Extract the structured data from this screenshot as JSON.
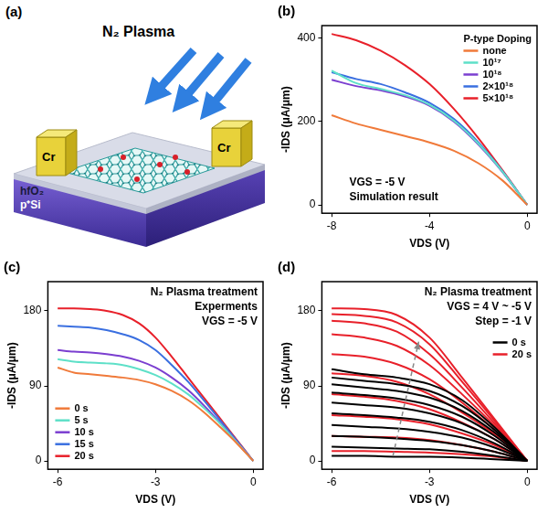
{
  "diagram": {
    "label": "(a)",
    "title": "N₂ Plasma",
    "electrodes": [
      "Cr",
      "Cr"
    ],
    "layers": [
      "hfO₂",
      "p⁺Si"
    ]
  },
  "chart_data": [
    {
      "type": "line",
      "title": "(b)",
      "x_label": "VDS (V)",
      "y_label": "-IDS (μA/μm)",
      "legend_title": "P-type Doping",
      "annotations": [
        "VGS = -5 V",
        "Simulation result"
      ],
      "x": [
        -8,
        -7,
        -6,
        -5,
        -4,
        -3,
        -2,
        -1,
        0
      ],
      "xlim": [
        -8.4,
        0.4
      ],
      "xticks": [
        -8,
        -4,
        0
      ],
      "ylim": [
        -20,
        430
      ],
      "yticks": [
        0,
        200,
        400
      ],
      "grid": false,
      "legend": "upper right",
      "series": [
        {
          "name": "none",
          "color": "#f07a3a",
          "values": [
            215,
            195,
            180,
            165,
            150,
            130,
            100,
            58,
            0
          ]
        },
        {
          "name": "10¹⁷",
          "color": "#5ee0c8",
          "values": [
            322,
            292,
            278,
            263,
            240,
            202,
            147,
            79,
            0
          ]
        },
        {
          "name": "10¹⁸",
          "color": "#7b3fd0",
          "values": [
            300,
            285,
            275,
            260,
            238,
            200,
            145,
            78,
            0
          ]
        },
        {
          "name": "2×10¹⁸",
          "color": "#3a6fe0",
          "values": [
            318,
            302,
            290,
            270,
            245,
            206,
            150,
            80,
            0
          ]
        },
        {
          "name": "5×10¹⁸",
          "color": "#e8202a",
          "values": [
            410,
            395,
            370,
            335,
            290,
            230,
            160,
            82,
            0
          ]
        }
      ]
    },
    {
      "type": "line",
      "title": "(c)",
      "x_label": "VDS (V)",
      "y_label": "-IDS (μA/μm)",
      "annotations": [
        "N₂ Plasma treatment",
        "Experments",
        "VGS = -5 V"
      ],
      "x": [
        -6,
        -5.5,
        -5,
        -4.5,
        -4,
        -3.5,
        -3,
        -2.5,
        -2,
        -1.5,
        -1,
        -0.5,
        0
      ],
      "xlim": [
        -6.3,
        0.3
      ],
      "xticks": [
        -6,
        -3,
        0
      ],
      "ylim": [
        -10,
        215
      ],
      "yticks": [
        0,
        90,
        180
      ],
      "grid": false,
      "legend": "lower left",
      "series": [
        {
          "name": "0 s",
          "color": "#f07a3a",
          "values": [
            112,
            106,
            104,
            102,
            100,
            97,
            92,
            84,
            73,
            58,
            40,
            21,
            0
          ]
        },
        {
          "name": "5 s",
          "color": "#5ee0c8",
          "values": [
            122,
            119,
            118,
            117,
            115,
            110,
            103,
            93,
            80,
            63,
            44,
            22,
            0
          ]
        },
        {
          "name": "10 s",
          "color": "#7b3fd0",
          "values": [
            133,
            131,
            130,
            128,
            125,
            120,
            112,
            100,
            85,
            66,
            45,
            23,
            0
          ]
        },
        {
          "name": "15 s",
          "color": "#3a6fe0",
          "values": [
            162,
            161,
            160,
            157,
            152,
            145,
            133,
            115,
            95,
            72,
            48,
            24,
            0
          ]
        },
        {
          "name": "20 s",
          "color": "#e8202a",
          "values": [
            183,
            183,
            182,
            180,
            175,
            165,
            148,
            125,
            100,
            75,
            50,
            25,
            0
          ]
        }
      ]
    },
    {
      "type": "line",
      "title": "(d)",
      "x_label": "VDS (V)",
      "y_label": "-IDS (μA/μm)",
      "annotations": [
        "N₂ Plasma treatment",
        "VGS = 4 V ~ -5 V",
        "Step = -1 V"
      ],
      "x": [
        -6,
        -5,
        -4,
        -3,
        -2,
        -1,
        0
      ],
      "xlim": [
        -6.3,
        0.3
      ],
      "xticks": [
        -6,
        -3,
        0
      ],
      "ylim": [
        -10,
        215
      ],
      "yticks": [
        0,
        90,
        180
      ],
      "grid": false,
      "legend": "upper right",
      "series": [
        {
          "name": "0 s",
          "color": "#000000",
          "values": [
            [
              110,
              104,
              100,
              92,
              73,
              40,
              0
            ],
            [
              100,
              96,
              92,
              84,
              66,
              37,
              0
            ],
            [
              92,
              88,
              84,
              76,
              60,
              34,
              0
            ],
            [
              82,
              79,
              75,
              67,
              53,
              30,
              0
            ],
            [
              70,
              67,
              64,
              57,
              45,
              26,
              0
            ],
            [
              57,
              55,
              52,
              47,
              37,
              21,
              0
            ],
            [
              43,
              41,
              39,
              35,
              28,
              16,
              0
            ],
            [
              30,
              29,
              27,
              24,
              19,
              11,
              0
            ],
            [
              17,
              16,
              15,
              14,
              11,
              6,
              0
            ],
            [
              6,
              6,
              5,
              5,
              4,
              2,
              0
            ]
          ]
        },
        {
          "name": "20 s",
          "color": "#e8202a",
          "values": [
            [
              183,
              182,
              175,
              148,
              100,
              50,
              0
            ],
            [
              176,
              174,
              166,
              140,
              95,
              48,
              0
            ],
            [
              168,
              165,
              155,
              128,
              88,
              45,
              0
            ],
            [
              152,
              148,
              138,
              115,
              80,
              42,
              0
            ],
            [
              128,
              125,
              116,
              98,
              70,
              37,
              0
            ],
            [
              105,
              102,
              95,
              80,
              58,
              32,
              0
            ],
            [
              80,
              77,
              72,
              62,
              46,
              26,
              0
            ],
            [
              55,
              53,
              50,
              44,
              33,
              19,
              0
            ],
            [
              30,
              29,
              28,
              25,
              19,
              11,
              0
            ],
            [
              12,
              12,
              11,
              10,
              8,
              5,
              0
            ]
          ]
        }
      ]
    }
  ]
}
